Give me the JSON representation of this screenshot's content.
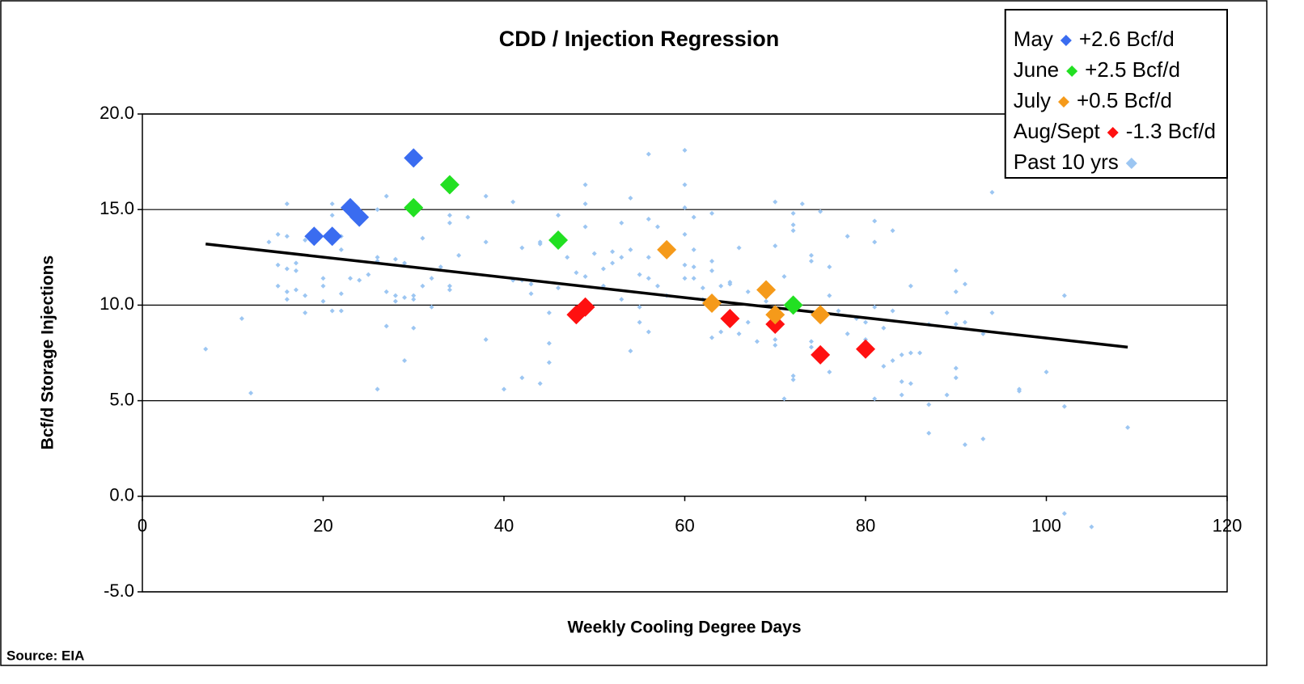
{
  "chart_data": {
    "type": "scatter",
    "title": "CDD / Injection Regression",
    "x_label": "Weekly Cooling Degree Days",
    "y_label": "Bcf/d Storage Injections",
    "source": "Source: EIA",
    "xlim": [
      0,
      120
    ],
    "xticks": [
      0,
      20,
      40,
      60,
      80,
      100,
      120
    ],
    "ylim": [
      -5,
      20
    ],
    "yticks": [
      {
        "value": -5,
        "label": "-5.0"
      },
      {
        "value": 0,
        "label": "0.0"
      },
      {
        "value": 5,
        "label": "5.0"
      },
      {
        "value": 10,
        "label": "10.0"
      },
      {
        "value": 15,
        "label": "15.0"
      },
      {
        "value": 20,
        "label": "20.0"
      }
    ],
    "grid": true,
    "legend": "upper right",
    "series": [
      {
        "name": "May",
        "note": "+2.6 Bcf/d",
        "color": "#3a6cf0",
        "marker": "large",
        "x": [
          19,
          21,
          23,
          24,
          30
        ],
        "values": [
          13.6,
          13.6,
          15.1,
          14.6,
          17.7
        ]
      },
      {
        "name": "June",
        "note": "+2.5 Bcf/d",
        "color": "#22e022",
        "marker": "large",
        "x": [
          30,
          34,
          46,
          72
        ],
        "values": [
          15.1,
          16.3,
          13.4,
          10.0
        ]
      },
      {
        "name": "July",
        "note": "+0.5 Bcf/d",
        "color": "#f59a1a",
        "marker": "large",
        "x": [
          58,
          63,
          69,
          70,
          75
        ],
        "values": [
          12.9,
          10.1,
          10.8,
          9.5,
          9.5
        ]
      },
      {
        "name": "Aug/Sept",
        "note": "-1.3 Bcf/d",
        "color": "#ff1010",
        "marker": "large",
        "x": [
          48,
          49,
          65,
          70,
          75,
          80
        ],
        "values": [
          9.5,
          9.9,
          9.3,
          9.0,
          7.4,
          7.7
        ]
      },
      {
        "name": "Past 10 yrs",
        "color": "#9cc6f2",
        "marker": "small",
        "x": [
          7,
          11,
          12,
          14,
          15,
          15,
          15,
          16,
          16,
          16,
          16,
          16,
          17,
          17,
          17,
          18,
          18,
          18,
          20,
          20,
          20,
          21,
          21,
          21,
          22,
          22,
          22,
          22,
          23,
          24,
          25,
          26,
          26,
          26,
          26,
          27,
          27,
          27,
          28,
          28,
          28,
          29,
          29,
          29,
          30,
          30,
          30,
          31,
          31,
          32,
          32,
          33,
          34,
          34,
          34,
          34,
          35,
          36,
          38,
          38,
          38,
          40,
          41,
          41,
          42,
          42,
          42,
          43,
          43,
          44,
          44,
          44,
          45,
          45,
          45,
          46,
          46,
          47,
          48,
          48,
          49,
          49,
          49,
          49,
          50,
          51,
          51,
          52,
          52,
          53,
          53,
          53,
          54,
          54,
          54,
          55,
          55,
          55,
          56,
          56,
          56,
          56,
          56,
          57,
          57,
          58,
          60,
          60,
          60,
          60,
          60,
          60,
          61,
          61,
          61,
          61,
          62,
          62,
          63,
          63,
          63,
          63,
          64,
          64,
          65,
          65,
          66,
          66,
          67,
          67,
          68,
          69,
          70,
          70,
          70,
          70,
          71,
          71,
          72,
          72,
          72,
          72,
          72,
          73,
          74,
          74,
          74,
          74,
          75,
          76,
          76,
          76,
          77,
          78,
          78,
          79,
          80,
          80,
          81,
          81,
          81,
          81,
          82,
          82,
          83,
          83,
          83,
          84,
          84,
          84,
          85,
          85,
          85,
          86,
          87,
          87,
          87,
          89,
          89,
          90,
          90,
          90,
          90,
          90,
          91,
          91,
          91,
          93,
          93,
          94,
          94,
          97,
          97,
          100,
          102,
          102,
          102,
          105,
          109
        ],
        "values": [
          7.7,
          9.3,
          5.4,
          13.3,
          13.7,
          12.1,
          11.0,
          15.3,
          13.6,
          11.9,
          10.7,
          10.3,
          12.2,
          11.8,
          10.8,
          9.6,
          10.5,
          13.4,
          11.4,
          11.0,
          10.2,
          15.3,
          14.7,
          9.7,
          13.6,
          12.9,
          10.6,
          9.7,
          11.4,
          11.3,
          11.6,
          12.5,
          12.3,
          5.6,
          15.0,
          15.7,
          10.7,
          8.9,
          12.4,
          10.5,
          10.2,
          12.2,
          7.1,
          10.4,
          10.5,
          10.3,
          8.8,
          11.0,
          13.5,
          9.9,
          11.4,
          12.0,
          14.3,
          14.7,
          11.0,
          10.8,
          12.6,
          14.6,
          15.7,
          13.3,
          8.2,
          5.6,
          15.4,
          11.3,
          13.0,
          11.3,
          6.2,
          10.6,
          11.1,
          13.3,
          13.2,
          5.9,
          9.6,
          7.0,
          8.0,
          14.7,
          10.9,
          12.5,
          9.6,
          11.7,
          16.3,
          15.3,
          14.1,
          11.5,
          12.7,
          11.9,
          11.0,
          12.8,
          12.2,
          12.5,
          14.3,
          10.3,
          15.6,
          12.9,
          7.6,
          11.6,
          9.9,
          9.1,
          17.9,
          14.5,
          12.5,
          11.4,
          8.6,
          11.0,
          14.1,
          10.5,
          18.1,
          16.3,
          15.1,
          13.7,
          12.1,
          11.4,
          14.6,
          12.9,
          12.0,
          11.4,
          10.9,
          10.3,
          14.8,
          12.3,
          11.8,
          8.3,
          11.0,
          8.6,
          11.1,
          11.2,
          13.0,
          8.5,
          10.7,
          9.1,
          8.1,
          10.2,
          15.4,
          13.1,
          8.2,
          7.9,
          5.1,
          11.5,
          14.8,
          14.2,
          13.9,
          6.3,
          6.1,
          15.3,
          12.6,
          12.3,
          8.1,
          7.8,
          14.9,
          12.0,
          10.5,
          6.5,
          9.7,
          13.6,
          8.5,
          9.3,
          8.2,
          9.1,
          14.4,
          13.3,
          9.9,
          5.1,
          8.8,
          6.8,
          13.9,
          9.7,
          7.1,
          7.4,
          6.0,
          5.3,
          11.0,
          7.5,
          5.9,
          7.5,
          9.0,
          4.8,
          3.3,
          9.6,
          5.3,
          11.8,
          10.7,
          9.0,
          6.7,
          6.2,
          11.1,
          9.1,
          2.7,
          8.5,
          3.0,
          9.6,
          15.9,
          5.5,
          5.6,
          6.5,
          10.5,
          4.7,
          -0.9,
          -1.6,
          3.6
        ]
      }
    ],
    "trendline": {
      "color": "#000000",
      "x": [
        7,
        109
      ],
      "values": [
        13.2,
        7.8
      ]
    }
  }
}
